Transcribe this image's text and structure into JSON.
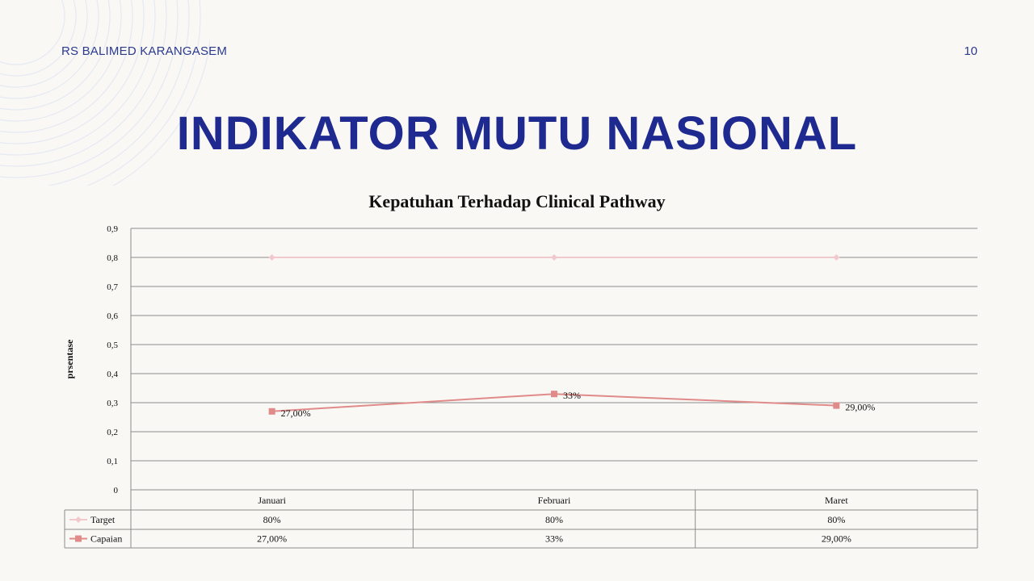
{
  "header": {
    "org_name": "RS BALIMED KARANGASEM",
    "page_number": "10"
  },
  "slide": {
    "title": "INDIKATOR MUTU NASIONAL"
  },
  "colors": {
    "title": "#1e2a8f",
    "target_line": "#f1c9cc",
    "capaian_line": "#e08a8a",
    "grid": "#8c8c8c"
  },
  "chart_data": {
    "type": "line",
    "title": "Kepatuhan Terhadap Clinical Pathway",
    "ylabel": "prsentase",
    "xlabel": "",
    "ylim": [
      0,
      0.9
    ],
    "yticks": [
      "0",
      "0,1",
      "0,2",
      "0,3",
      "0,4",
      "0,5",
      "0,6",
      "0,7",
      "0,8",
      "0,9"
    ],
    "categories": [
      "Januari",
      "Februari",
      "Maret"
    ],
    "grid": true,
    "legend": "data-table",
    "series": [
      {
        "name": "Target",
        "values": [
          0.8,
          0.8,
          0.8
        ],
        "labels": [
          "80%",
          "80%",
          "80%"
        ],
        "marker": "diamond",
        "point_labels": [
          "",
          "",
          ""
        ]
      },
      {
        "name": "Capaian",
        "values": [
          0.27,
          0.33,
          0.29
        ],
        "labels": [
          "27,00%",
          "33%",
          "29,00%"
        ],
        "marker": "square",
        "point_labels": [
          "27,00%",
          "33%",
          "29,00%"
        ]
      }
    ]
  }
}
